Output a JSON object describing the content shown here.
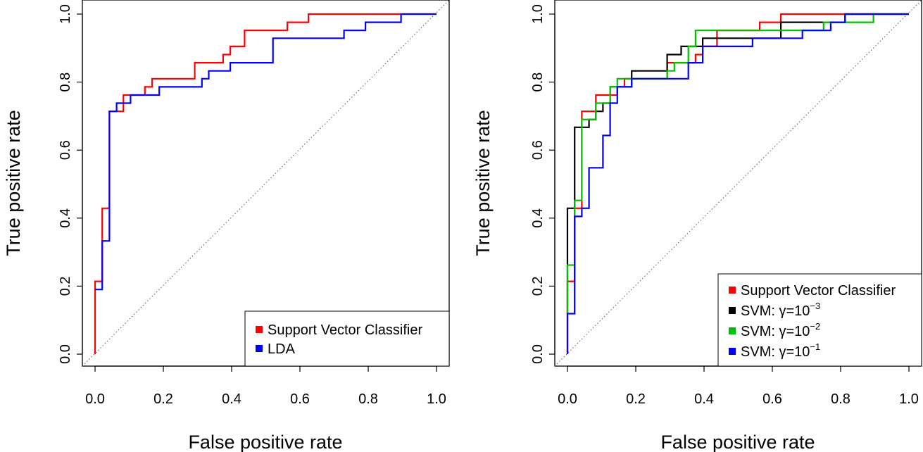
{
  "chart_data": [
    {
      "type": "line",
      "title": "",
      "xlabel": "False positive rate",
      "ylabel": "True positive rate",
      "xlim": [
        0,
        1
      ],
      "ylim": [
        0,
        1
      ],
      "xticks": [
        "0.0",
        "0.2",
        "0.4",
        "0.6",
        "0.8",
        "1.0"
      ],
      "yticks": [
        "0.0",
        "0.2",
        "0.4",
        "0.6",
        "0.8",
        "1.0"
      ],
      "grid": false,
      "diagonal_reference": true,
      "legend_position": "bottom-right",
      "series": [
        {
          "name": "Support Vector Classifier",
          "color": "#ff0000",
          "points": [
            [
              0,
              0
            ],
            [
              0,
              0.214
            ],
            [
              0.021,
              0.214
            ],
            [
              0.021,
              0.429
            ],
            [
              0.042,
              0.429
            ],
            [
              0.042,
              0.714
            ],
            [
              0.083,
              0.714
            ],
            [
              0.083,
              0.762
            ],
            [
              0.146,
              0.762
            ],
            [
              0.146,
              0.786
            ],
            [
              0.167,
              0.786
            ],
            [
              0.167,
              0.81
            ],
            [
              0.292,
              0.81
            ],
            [
              0.292,
              0.857
            ],
            [
              0.375,
              0.857
            ],
            [
              0.375,
              0.881
            ],
            [
              0.396,
              0.881
            ],
            [
              0.396,
              0.905
            ],
            [
              0.438,
              0.905
            ],
            [
              0.438,
              0.952
            ],
            [
              0.563,
              0.952
            ],
            [
              0.563,
              0.976
            ],
            [
              0.625,
              0.976
            ],
            [
              0.625,
              1
            ],
            [
              1,
              1
            ]
          ]
        },
        {
          "name": "LDA",
          "color": "#0000ff",
          "points": [
            [
              0,
              0.19
            ],
            [
              0.021,
              0.19
            ],
            [
              0.021,
              0.333
            ],
            [
              0.042,
              0.333
            ],
            [
              0.042,
              0.714
            ],
            [
              0.063,
              0.714
            ],
            [
              0.063,
              0.738
            ],
            [
              0.104,
              0.738
            ],
            [
              0.104,
              0.762
            ],
            [
              0.188,
              0.762
            ],
            [
              0.188,
              0.786
            ],
            [
              0.313,
              0.786
            ],
            [
              0.313,
              0.81
            ],
            [
              0.333,
              0.81
            ],
            [
              0.333,
              0.833
            ],
            [
              0.396,
              0.833
            ],
            [
              0.396,
              0.857
            ],
            [
              0.521,
              0.857
            ],
            [
              0.521,
              0.929
            ],
            [
              0.729,
              0.929
            ],
            [
              0.729,
              0.952
            ],
            [
              0.792,
              0.952
            ],
            [
              0.792,
              0.976
            ],
            [
              0.896,
              0.976
            ],
            [
              0.896,
              1
            ],
            [
              1,
              1
            ]
          ]
        }
      ]
    },
    {
      "type": "line",
      "title": "",
      "xlabel": "False positive rate",
      "ylabel": "True positive rate",
      "xlim": [
        0,
        1
      ],
      "ylim": [
        0,
        1
      ],
      "xticks": [
        "0.0",
        "0.2",
        "0.4",
        "0.6",
        "0.8",
        "1.0"
      ],
      "yticks": [
        "0.0",
        "0.2",
        "0.4",
        "0.6",
        "0.8",
        "1.0"
      ],
      "grid": false,
      "diagonal_reference": true,
      "legend_position": "bottom-right",
      "series": [
        {
          "name": "Support Vector Classifier",
          "legend": {
            "text": "Support Vector Classifier"
          },
          "color": "#ff0000",
          "points": [
            [
              0,
              0
            ],
            [
              0,
              0.214
            ],
            [
              0.021,
              0.214
            ],
            [
              0.021,
              0.429
            ],
            [
              0.042,
              0.429
            ],
            [
              0.042,
              0.714
            ],
            [
              0.083,
              0.714
            ],
            [
              0.083,
              0.762
            ],
            [
              0.146,
              0.762
            ],
            [
              0.146,
              0.786
            ],
            [
              0.167,
              0.786
            ],
            [
              0.167,
              0.81
            ],
            [
              0.292,
              0.81
            ],
            [
              0.292,
              0.857
            ],
            [
              0.375,
              0.857
            ],
            [
              0.375,
              0.881
            ],
            [
              0.396,
              0.881
            ],
            [
              0.396,
              0.905
            ],
            [
              0.438,
              0.905
            ],
            [
              0.438,
              0.952
            ],
            [
              0.563,
              0.952
            ],
            [
              0.563,
              0.976
            ],
            [
              0.625,
              0.976
            ],
            [
              0.625,
              1
            ],
            [
              1,
              1
            ]
          ]
        },
        {
          "name": "SVM: γ=10^-3",
          "legend": {
            "text": "SVM: γ=10",
            "exponent": "−3"
          },
          "color": "#000000",
          "points": [
            [
              0,
              0.119
            ],
            [
              0,
              0.429
            ],
            [
              0.021,
              0.429
            ],
            [
              0.021,
              0.667
            ],
            [
              0.063,
              0.667
            ],
            [
              0.063,
              0.69
            ],
            [
              0.083,
              0.69
            ],
            [
              0.083,
              0.714
            ],
            [
              0.104,
              0.714
            ],
            [
              0.104,
              0.738
            ],
            [
              0.125,
              0.738
            ],
            [
              0.125,
              0.786
            ],
            [
              0.188,
              0.786
            ],
            [
              0.188,
              0.833
            ],
            [
              0.292,
              0.833
            ],
            [
              0.292,
              0.881
            ],
            [
              0.333,
              0.881
            ],
            [
              0.333,
              0.905
            ],
            [
              0.396,
              0.905
            ],
            [
              0.396,
              0.929
            ],
            [
              0.625,
              0.929
            ],
            [
              0.625,
              0.976
            ],
            [
              0.813,
              0.976
            ],
            [
              0.813,
              1
            ],
            [
              1,
              1
            ]
          ]
        },
        {
          "name": "SVM: γ=10^-2",
          "legend": {
            "text": "SVM: γ=10",
            "exponent": "−2"
          },
          "color": "#00c000",
          "points": [
            [
              0,
              0.119
            ],
            [
              0,
              0.262
            ],
            [
              0.021,
              0.262
            ],
            [
              0.021,
              0.452
            ],
            [
              0.042,
              0.452
            ],
            [
              0.042,
              0.69
            ],
            [
              0.083,
              0.69
            ],
            [
              0.083,
              0.738
            ],
            [
              0.125,
              0.738
            ],
            [
              0.125,
              0.786
            ],
            [
              0.146,
              0.786
            ],
            [
              0.146,
              0.81
            ],
            [
              0.292,
              0.81
            ],
            [
              0.292,
              0.833
            ],
            [
              0.313,
              0.833
            ],
            [
              0.313,
              0.857
            ],
            [
              0.354,
              0.857
            ],
            [
              0.354,
              0.905
            ],
            [
              0.375,
              0.905
            ],
            [
              0.375,
              0.952
            ],
            [
              0.75,
              0.952
            ],
            [
              0.75,
              0.976
            ],
            [
              0.896,
              0.976
            ],
            [
              0.896,
              1
            ],
            [
              1,
              1
            ]
          ]
        },
        {
          "name": "SVM: γ=10^-1",
          "legend": {
            "text": "SVM: γ=10",
            "exponent": "−1"
          },
          "color": "#0000ff",
          "points": [
            [
              0,
              0
            ],
            [
              0,
              0.119
            ],
            [
              0.021,
              0.119
            ],
            [
              0.021,
              0.405
            ],
            [
              0.042,
              0.405
            ],
            [
              0.042,
              0.429
            ],
            [
              0.063,
              0.429
            ],
            [
              0.063,
              0.548
            ],
            [
              0.104,
              0.548
            ],
            [
              0.104,
              0.643
            ],
            [
              0.125,
              0.643
            ],
            [
              0.125,
              0.738
            ],
            [
              0.146,
              0.738
            ],
            [
              0.146,
              0.786
            ],
            [
              0.188,
              0.786
            ],
            [
              0.188,
              0.81
            ],
            [
              0.354,
              0.81
            ],
            [
              0.354,
              0.857
            ],
            [
              0.396,
              0.857
            ],
            [
              0.396,
              0.905
            ],
            [
              0.542,
              0.905
            ],
            [
              0.542,
              0.929
            ],
            [
              0.688,
              0.929
            ],
            [
              0.688,
              0.952
            ],
            [
              0.771,
              0.952
            ],
            [
              0.771,
              0.976
            ],
            [
              0.813,
              0.976
            ],
            [
              0.813,
              1
            ],
            [
              1,
              1
            ]
          ]
        }
      ]
    }
  ]
}
